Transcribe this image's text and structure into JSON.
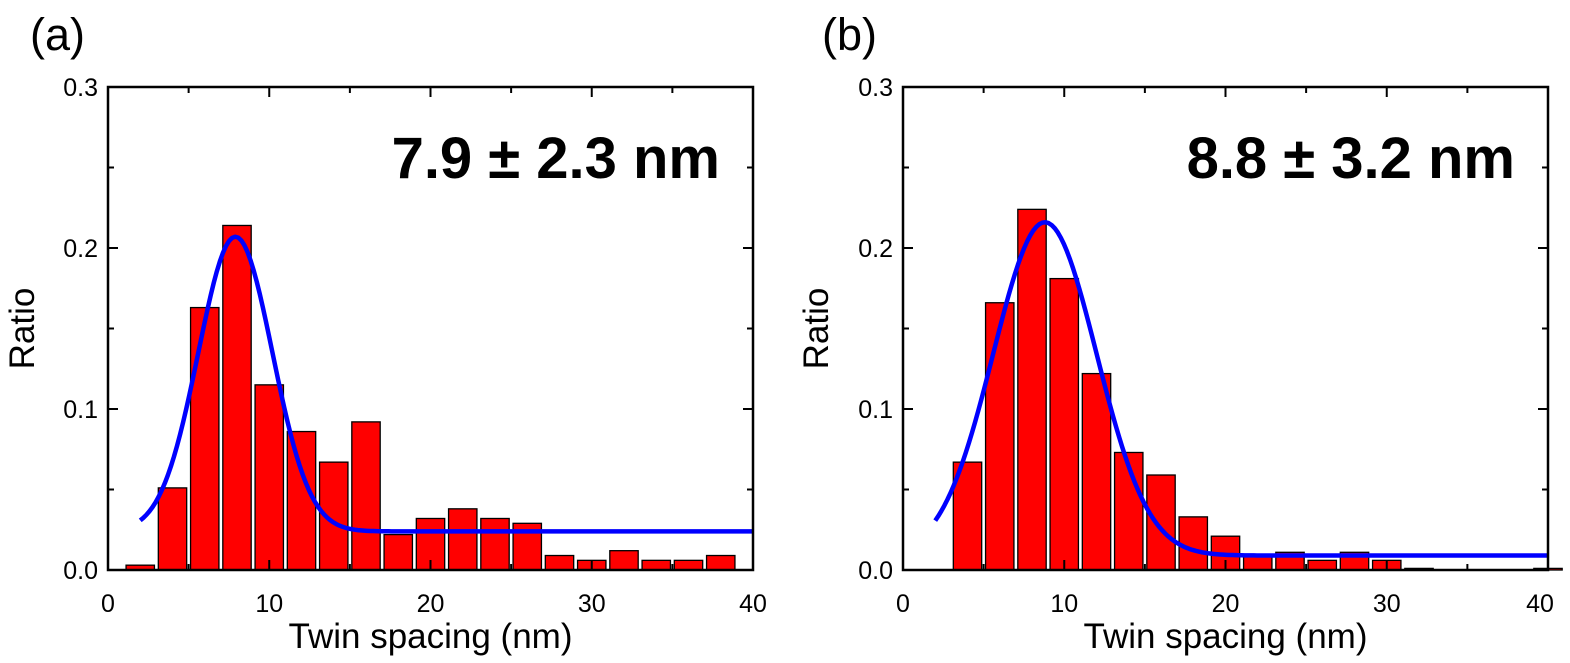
{
  "chart_data": [
    {
      "panel_label": "(a)",
      "type": "bar",
      "xlabel": "Twin spacing (nm)",
      "ylabel": "Ratio",
      "xlim": [
        0,
        40
      ],
      "ylim": [
        0,
        0.3
      ],
      "xticks": [
        "0",
        "10",
        "20",
        "30",
        "40"
      ],
      "yticks": [
        "0.0",
        "0.1",
        "0.2",
        "0.3"
      ],
      "annotation": "7.9 ± 2.3 nm",
      "bin_width": 2,
      "x": [
        2,
        4,
        6,
        8,
        10,
        12,
        14,
        16,
        18,
        20,
        22,
        24,
        26,
        28,
        30,
        32,
        34,
        36,
        38
      ],
      "values": [
        0.003,
        0.051,
        0.163,
        0.214,
        0.115,
        0.086,
        0.067,
        0.092,
        0.022,
        0.032,
        0.038,
        0.032,
        0.029,
        0.009,
        0.006,
        0.012,
        0.006,
        0.006,
        0.009
      ],
      "fit": {
        "type": "gaussian",
        "center": 7.9,
        "sigma": 2.3,
        "amplitude": 0.183,
        "baseline": 0.024,
        "x_range": [
          2,
          40
        ],
        "color": "#0000ff"
      },
      "bar_color": "#ff0000"
    },
    {
      "panel_label": "(b)",
      "type": "bar",
      "xlabel": "Twin spacing (nm)",
      "ylabel": "Ratio",
      "xlim": [
        0,
        40
      ],
      "ylim": [
        0,
        0.3
      ],
      "xticks": [
        "0",
        "10",
        "20",
        "30",
        "40"
      ],
      "yticks": [
        "0.0",
        "0.1",
        "0.2",
        "0.3"
      ],
      "annotation": "8.8 ± 3.2 nm",
      "bin_width": 2,
      "x": [
        4,
        6,
        8,
        10,
        12,
        14,
        16,
        18,
        20,
        22,
        24,
        26,
        28,
        30,
        32,
        34,
        36,
        38,
        40
      ],
      "values": [
        0.067,
        0.166,
        0.224,
        0.181,
        0.122,
        0.073,
        0.059,
        0.033,
        0.021,
        0.009,
        0.011,
        0.006,
        0.011,
        0.006,
        0.001,
        0.0,
        0.0,
        0.0,
        0.001
      ],
      "fit": {
        "type": "gaussian",
        "center": 8.8,
        "sigma": 3.2,
        "amplitude": 0.207,
        "baseline": 0.009,
        "x_range": [
          2,
          40
        ],
        "color": "#0000ff"
      },
      "bar_color": "#ff0000"
    }
  ]
}
